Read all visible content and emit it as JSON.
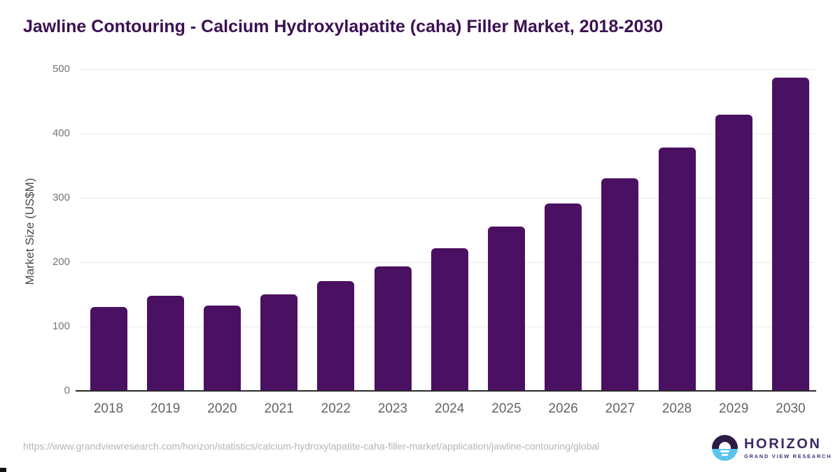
{
  "title": "Jawline Contouring - Calcium Hydroxylapatite (caha) Filler Market, 2018-2030",
  "chart_data": {
    "type": "bar",
    "categories": [
      "2018",
      "2019",
      "2020",
      "2021",
      "2022",
      "2023",
      "2024",
      "2025",
      "2026",
      "2027",
      "2028",
      "2029",
      "2030"
    ],
    "values": [
      131,
      148,
      133,
      150,
      171,
      194,
      222,
      255,
      291,
      331,
      378,
      429,
      487
    ],
    "title": "Jawline Contouring - Calcium Hydroxylapatite (caha) Filler Market, 2018-2030",
    "xlabel": "",
    "ylabel": "Market Size (US$M)",
    "ylim": [
      0,
      500
    ],
    "yticks": [
      0,
      100,
      200,
      300,
      400,
      500
    ],
    "grid": "horizontal",
    "legend": "none"
  },
  "footer": {
    "source_url": "https://www.grandviewresearch.com/horizon/statistics/calcium-hydroxylapatite-caha-filler-market/application/jawline-contouring/global"
  },
  "logo": {
    "brand": "HORIZON",
    "tagline": "GRAND VIEW RESEARCH"
  },
  "colors": {
    "bar": "#4a1061",
    "title": "#3b1052",
    "ytick_label": "#757575",
    "xtick_label": "#636363",
    "gridline": "#e8e8e8",
    "axis_line": "#2b2b2b",
    "footer_text": "#b5b5b5",
    "logo_dark": "#2e1a47",
    "logo_blue": "#59c4ee"
  }
}
